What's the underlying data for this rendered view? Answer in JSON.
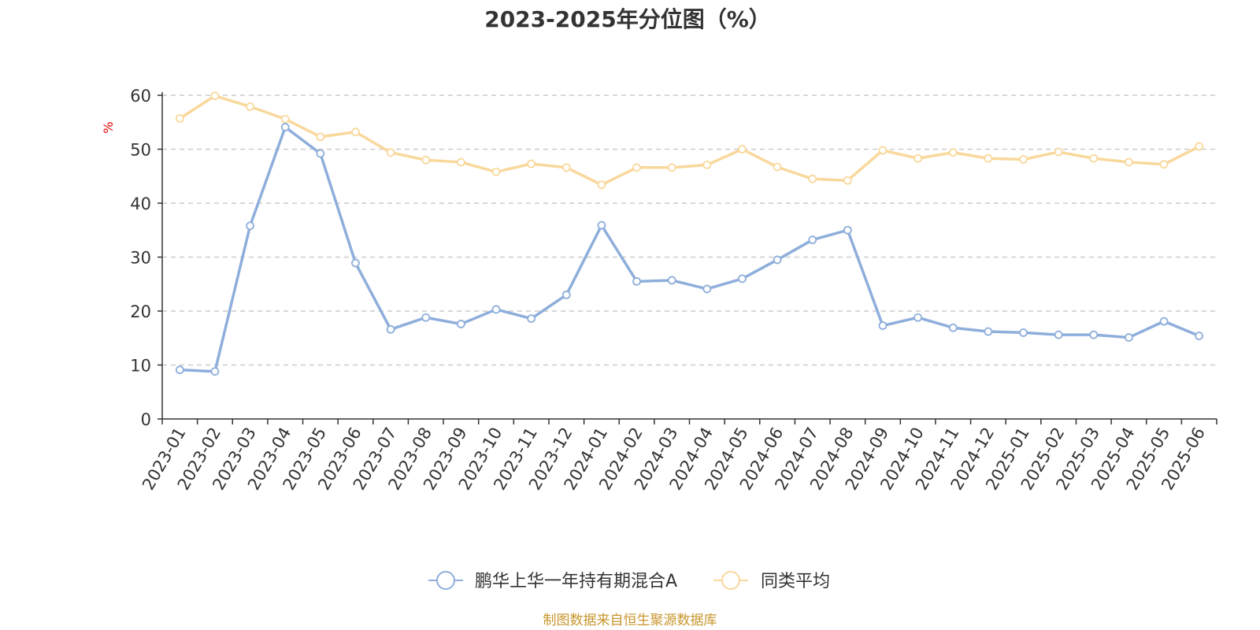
{
  "chart_data": {
    "type": "line",
    "title": "2023-2025年分位图（%）",
    "y_unit": "%",
    "ylim": [
      0,
      60
    ],
    "y_ticks": [
      0,
      10,
      20,
      30,
      40,
      50,
      60
    ],
    "grid": true,
    "legend_position": "bottom",
    "categories": [
      "2023-01",
      "2023-02",
      "2023-03",
      "2023-04",
      "2023-05",
      "2023-06",
      "2023-07",
      "2023-08",
      "2023-09",
      "2023-10",
      "2023-11",
      "2023-12",
      "2024-01",
      "2024-02",
      "2024-03",
      "2024-04",
      "2024-05",
      "2024-06",
      "2024-07",
      "2024-08",
      "2024-09",
      "2024-10",
      "2024-11",
      "2024-12",
      "2025-01",
      "2025-02",
      "2025-03",
      "2025-04",
      "2025-05",
      "2025-06"
    ],
    "series": [
      {
        "name": "鹏华上华一年持有期混合A",
        "color": "#8eaedb",
        "values": [
          9.1,
          8.8,
          35.8,
          54.1,
          49.2,
          28.9,
          16.6,
          18.8,
          17.6,
          20.3,
          18.6,
          23.0,
          35.9,
          25.5,
          25.7,
          24.1,
          26.0,
          29.5,
          33.2,
          35.0,
          17.3,
          18.8,
          16.9,
          16.2,
          16.0,
          15.6,
          15.6,
          15.1,
          18.1,
          15.4
        ]
      },
      {
        "name": "同类平均",
        "color": "#f9d89c",
        "values": [
          55.7,
          59.9,
          57.9,
          55.6,
          52.3,
          53.2,
          49.4,
          48.0,
          47.6,
          45.8,
          47.3,
          46.6,
          43.4,
          46.6,
          46.6,
          47.1,
          50.0,
          46.7,
          44.5,
          44.2,
          49.8,
          48.3,
          49.4,
          48.3,
          48.1,
          49.5,
          48.3,
          47.6,
          47.2,
          50.5
        ]
      }
    ]
  },
  "footer": {
    "source_text": "制图数据来自恒生聚源数据库"
  }
}
